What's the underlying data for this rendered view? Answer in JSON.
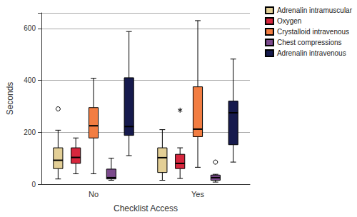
{
  "chart_data": {
    "type": "boxplot",
    "categories": [
      "No",
      "Yes"
    ],
    "x_label": "Checklist Access",
    "y_label": "Seconds",
    "ylim": [
      0,
      660
    ],
    "yticks": [
      0,
      200,
      400,
      600
    ],
    "grid": true,
    "legend": "top-right",
    "series": [
      {
        "name": "Adrenalin intramuscular",
        "color": "#e3cf96",
        "values": [
          [
            20,
            60,
            92,
            140,
            208
          ],
          [
            15,
            45,
            102,
            140,
            210
          ]
        ],
        "outliers": [
          {
            "category": "No",
            "value": 290,
            "marker": "circle"
          }
        ]
      },
      {
        "name": "Oxygen",
        "color": "#d7263d",
        "values": [
          [
            40,
            80,
            103,
            140,
            178
          ],
          [
            22,
            60,
            80,
            115,
            140
          ]
        ],
        "outliers": [
          {
            "category": "Yes",
            "value": 285,
            "marker": "star"
          }
        ]
      },
      {
        "name": "Crystalloid intravenous",
        "color": "#f27d42",
        "values": [
          [
            40,
            178,
            225,
            295,
            408
          ],
          [
            65,
            183,
            212,
            375,
            630
          ]
        ],
        "outliers": []
      },
      {
        "name": "Chest compressions",
        "color": "#7b4a8c",
        "values": [
          [
            15,
            20,
            25,
            58,
            100
          ],
          [
            8,
            15,
            25,
            35,
            38
          ]
        ],
        "outliers": [
          {
            "category": "Yes",
            "value": 85,
            "marker": "circle"
          }
        ]
      },
      {
        "name": "Adrenalin intravenous",
        "color": "#161a4d",
        "values": [
          [
            110,
            188,
            222,
            410,
            588
          ],
          [
            85,
            152,
            275,
            320,
            482
          ]
        ],
        "outliers": []
      }
    ]
  }
}
